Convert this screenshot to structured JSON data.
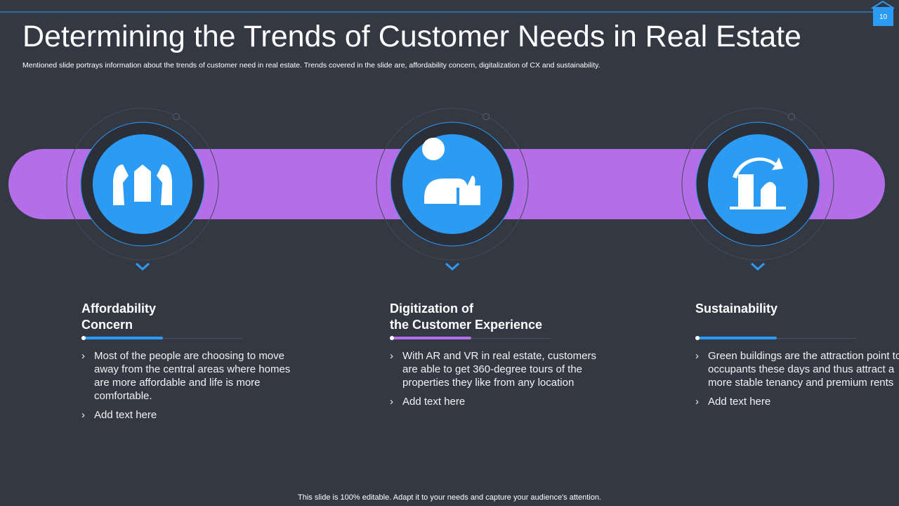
{
  "page_number": "10",
  "header": {
    "title": "Determining the Trends of Customer Needs in Real Estate",
    "subtitle": "Mentioned slide portrays information about the trends of customer need in real estate. Trends covered in the slide are, affordability concern, digitalization of CX and sustainability."
  },
  "items": [
    {
      "heading": [
        "Affordability",
        "Concern"
      ],
      "bullets": [
        "Most of the people are choosing to move away from the central areas where homes are more affordable and life is more comfortable.",
        "Add text here"
      ]
    },
    {
      "heading": [
        "Digitization of",
        "the Customer Experience"
      ],
      "bullets": [
        "With AR and VR in real estate, customers are able to get 360-degree tours of the properties they like from any location",
        "Add text here"
      ]
    },
    {
      "heading": [
        "Sustainability"
      ],
      "bullets": [
        "Green buildings are the attraction point to occupants these days and thus attract a more stable tenancy and premium rents",
        "Add text here"
      ]
    }
  ],
  "footer": "This slide is 100% editable. Adapt it to your needs and capture your audience's attention."
}
